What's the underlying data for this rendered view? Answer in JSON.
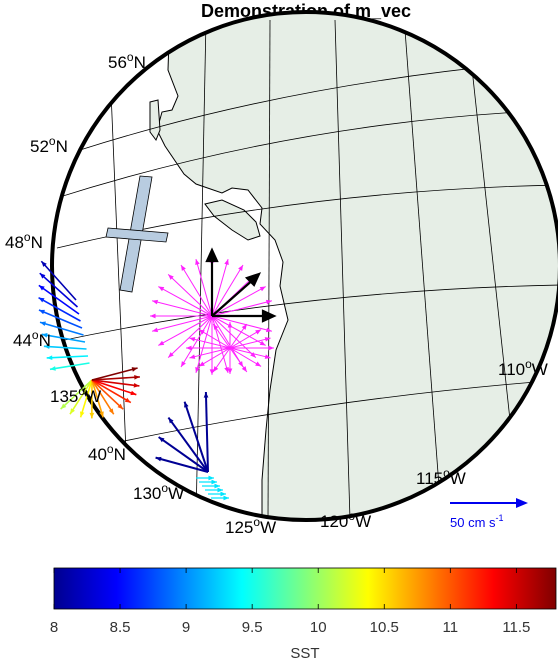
{
  "map": {
    "title": "Demonstration of m_vec",
    "lat_labels": [
      {
        "deg": "56",
        "hemi": "N"
      },
      {
        "deg": "52",
        "hemi": "N"
      },
      {
        "deg": "48",
        "hemi": "N"
      },
      {
        "deg": "44",
        "hemi": "N"
      },
      {
        "deg": "40",
        "hemi": "N"
      }
    ],
    "lon_labels": [
      {
        "deg": "135",
        "hemi": "W"
      },
      {
        "deg": "130",
        "hemi": "W"
      },
      {
        "deg": "125",
        "hemi": "W"
      },
      {
        "deg": "120",
        "hemi": "W"
      },
      {
        "deg": "115",
        "hemi": "W"
      },
      {
        "deg": "110",
        "hemi": "W"
      }
    ],
    "legend_vector": {
      "text": "50 cm s",
      "exponent": "-1",
      "color": "#0000ee"
    },
    "colors": {
      "land": "#e6eee6",
      "ocean": "#ffffff",
      "cross": "#b8cce0",
      "fan": "#ff22ff",
      "black_arrows": "#000000"
    }
  },
  "colorbar": {
    "label": "SST",
    "min": 8,
    "max": 11.8,
    "ticks": [
      "8",
      "8.5",
      "9",
      "9.5",
      "10",
      "10.5",
      "11",
      "11.5"
    ],
    "colormap": "jet"
  }
}
